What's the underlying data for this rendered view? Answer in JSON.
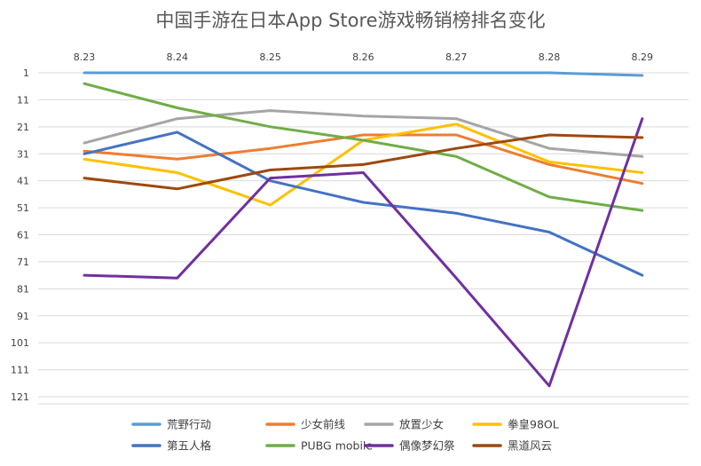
{
  "chart_data": {
    "type": "line",
    "title": "中国手游在日本App Store游戏畅销榜排名变化",
    "xlabel": "",
    "ylabel": "",
    "categories": [
      "8.23",
      "8.24",
      "8.25",
      "8.26",
      "8.27",
      "8.28",
      "8.29"
    ],
    "y_ticks": [
      "1",
      "11",
      "21",
      "31",
      "41",
      "51",
      "61",
      "71",
      "81",
      "91",
      "101",
      "111",
      "121"
    ],
    "ylim": [
      1,
      121
    ],
    "y_inverted": true,
    "x_axis_position": "top",
    "grid": true,
    "legend": "bottom",
    "series": [
      {
        "name": "荒野行动",
        "color": "#5B9BD5",
        "values": [
          1,
          1,
          1,
          1,
          1,
          1,
          2
        ]
      },
      {
        "name": "少女前线",
        "color": "#ED7D31",
        "values": [
          30,
          33,
          29,
          24,
          24,
          35,
          42
        ]
      },
      {
        "name": "放置少女",
        "color": "#A5A5A5",
        "values": [
          27,
          18,
          15,
          17,
          18,
          29,
          32
        ]
      },
      {
        "name": "拳皇98OL",
        "color": "#FFC000",
        "values": [
          33,
          38,
          50,
          26,
          20,
          34,
          38
        ]
      },
      {
        "name": "第五人格",
        "color": "#4472C4",
        "values": [
          31,
          23,
          41,
          49,
          53,
          60,
          76
        ]
      },
      {
        "name": "PUBG mobile",
        "color": "#70AD47",
        "values": [
          5,
          14,
          21,
          26,
          32,
          47,
          52
        ]
      },
      {
        "name": "偶像梦幻祭",
        "color": "#7030A0",
        "values": [
          76,
          77,
          40,
          38,
          77,
          117,
          18
        ]
      },
      {
        "name": "黑道风云",
        "color": "#9E480E",
        "values": [
          40,
          44,
          37,
          35,
          29,
          24,
          25
        ]
      }
    ]
  }
}
